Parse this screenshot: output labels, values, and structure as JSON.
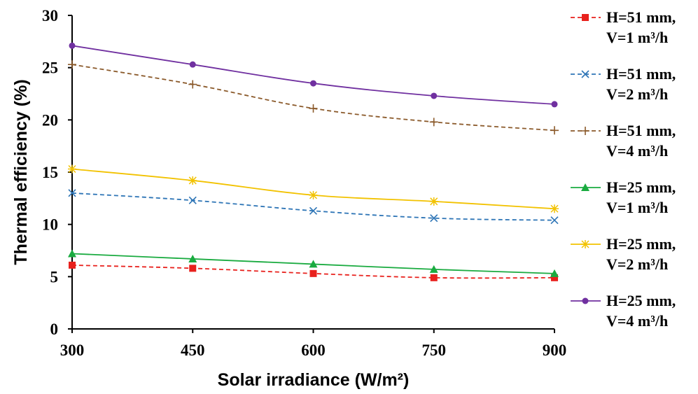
{
  "chart_data": {
    "type": "line",
    "xlabel": "Solar irradiance (W/m²)",
    "ylabel": "Thermal efficiency (%)",
    "x": [
      300,
      450,
      600,
      750,
      900
    ],
    "x_ticks": [
      "300",
      "450",
      "600",
      "750",
      "900"
    ],
    "y_ticks": [
      "0",
      "5",
      "10",
      "15",
      "20",
      "25",
      "30"
    ],
    "xlim": [
      300,
      900
    ],
    "ylim": [
      0,
      30
    ],
    "grid": false,
    "legend_position": "right",
    "series": [
      {
        "name_line1": "H=51 mm,",
        "name_line2": "V=1 m³/h",
        "values": [
          6.1,
          5.8,
          5.3,
          4.9,
          4.9
        ],
        "color": "#e8211d",
        "dash": "dashed",
        "marker": "square"
      },
      {
        "name_line1": "H=51 mm,",
        "name_line2": "V=2 m³/h",
        "values": [
          13.0,
          12.3,
          11.3,
          10.6,
          10.4
        ],
        "color": "#2e75b6",
        "dash": "dashed",
        "marker": "x"
      },
      {
        "name_line1": "H=51 mm,",
        "name_line2": "V=4 m³/h",
        "values": [
          25.3,
          23.4,
          21.1,
          19.8,
          19.0
        ],
        "color": "#8b5a2b",
        "dash": "dashed",
        "marker": "plus"
      },
      {
        "name_line1": "H=25 mm,",
        "name_line2": "V=1 m³/h",
        "values": [
          7.2,
          6.7,
          6.2,
          5.7,
          5.3
        ],
        "color": "#1aab40",
        "dash": "solid",
        "marker": "triangle"
      },
      {
        "name_line1": "H=25 mm,",
        "name_line2": "V=2 m³/h",
        "values": [
          15.3,
          14.2,
          12.8,
          12.2,
          11.5
        ],
        "color": "#f2c200",
        "dash": "solid",
        "marker": "star"
      },
      {
        "name_line1": "H=25 mm,",
        "name_line2": "V=4 m³/h",
        "values": [
          27.1,
          25.3,
          23.5,
          22.3,
          21.5
        ],
        "color": "#7030a0",
        "dash": "solid",
        "marker": "circle"
      }
    ]
  }
}
